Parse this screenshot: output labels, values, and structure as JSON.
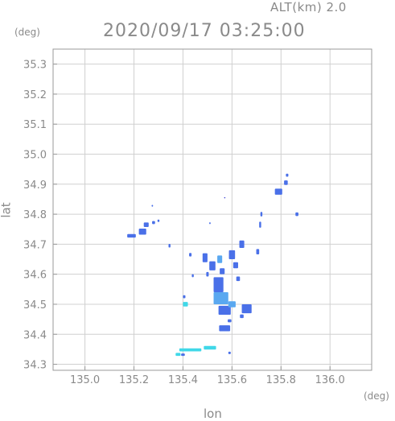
{
  "header": {
    "altitude": "ALT(km) 2.0",
    "datetime": "2020/09/17 03:25:00"
  },
  "chart_data": {
    "type": "heatmap",
    "title": "2020/09/17 03:25:00",
    "subtitle": "ALT(km) 2.0",
    "xlabel": "lon",
    "ylabel": "lat",
    "xunit": "(deg)",
    "yunit": "(deg)",
    "xlim": [
      134.87,
      136.17
    ],
    "ylim": [
      34.28,
      35.35
    ],
    "xticks": [
      "135.0",
      "135.2",
      "135.4",
      "135.6",
      "135.8",
      "136.0"
    ],
    "yticks": [
      "34.3",
      "34.4",
      "34.5",
      "34.6",
      "34.7",
      "34.8",
      "34.9",
      "35.0",
      "35.1",
      "35.2",
      "35.3"
    ],
    "grid": true,
    "colors": {
      "cyan": "#40d8e8",
      "lightblue": "#5aa8f0",
      "blue": "#4a70e8",
      "darkblue": "#3a40d0"
    },
    "cells": [
      {
        "lon": 135.19,
        "lat": 34.728,
        "w": 0.035,
        "h": 0.012,
        "c": "blue"
      },
      {
        "lon": 135.235,
        "lat": 34.742,
        "w": 0.03,
        "h": 0.02,
        "c": "blue"
      },
      {
        "lon": 135.25,
        "lat": 34.765,
        "w": 0.02,
        "h": 0.015,
        "c": "blue"
      },
      {
        "lon": 135.28,
        "lat": 34.772,
        "w": 0.012,
        "h": 0.01,
        "c": "blue"
      },
      {
        "lon": 135.3,
        "lat": 34.778,
        "w": 0.008,
        "h": 0.008,
        "c": "blue"
      },
      {
        "lon": 135.275,
        "lat": 34.828,
        "w": 0.006,
        "h": 0.006,
        "c": "blue"
      },
      {
        "lon": 135.345,
        "lat": 34.695,
        "w": 0.008,
        "h": 0.012,
        "c": "blue"
      },
      {
        "lon": 135.43,
        "lat": 34.665,
        "w": 0.01,
        "h": 0.012,
        "c": "blue"
      },
      {
        "lon": 135.49,
        "lat": 34.655,
        "w": 0.02,
        "h": 0.03,
        "c": "blue"
      },
      {
        "lon": 135.52,
        "lat": 34.628,
        "w": 0.025,
        "h": 0.03,
        "c": "blue"
      },
      {
        "lon": 135.55,
        "lat": 34.65,
        "w": 0.02,
        "h": 0.025,
        "c": "lightblue"
      },
      {
        "lon": 135.6,
        "lat": 34.665,
        "w": 0.025,
        "h": 0.03,
        "c": "blue"
      },
      {
        "lon": 135.64,
        "lat": 34.7,
        "w": 0.02,
        "h": 0.025,
        "c": "blue"
      },
      {
        "lon": 135.615,
        "lat": 34.63,
        "w": 0.02,
        "h": 0.02,
        "c": "blue"
      },
      {
        "lon": 135.44,
        "lat": 34.595,
        "w": 0.008,
        "h": 0.01,
        "c": "blue"
      },
      {
        "lon": 135.5,
        "lat": 34.6,
        "w": 0.01,
        "h": 0.015,
        "c": "blue"
      },
      {
        "lon": 135.56,
        "lat": 34.61,
        "w": 0.02,
        "h": 0.02,
        "c": "blue"
      },
      {
        "lon": 135.625,
        "lat": 34.585,
        "w": 0.015,
        "h": 0.015,
        "c": "blue"
      },
      {
        "lon": 135.545,
        "lat": 34.565,
        "w": 0.04,
        "h": 0.05,
        "c": "blue"
      },
      {
        "lon": 135.555,
        "lat": 34.52,
        "w": 0.06,
        "h": 0.04,
        "c": "lightblue"
      },
      {
        "lon": 135.57,
        "lat": 34.48,
        "w": 0.05,
        "h": 0.03,
        "c": "blue"
      },
      {
        "lon": 135.6,
        "lat": 34.5,
        "w": 0.03,
        "h": 0.02,
        "c": "lightblue"
      },
      {
        "lon": 135.66,
        "lat": 34.485,
        "w": 0.04,
        "h": 0.03,
        "c": "blue"
      },
      {
        "lon": 135.64,
        "lat": 34.46,
        "w": 0.015,
        "h": 0.012,
        "c": "blue"
      },
      {
        "lon": 135.405,
        "lat": 34.525,
        "w": 0.01,
        "h": 0.01,
        "c": "blue"
      },
      {
        "lon": 135.41,
        "lat": 34.5,
        "w": 0.02,
        "h": 0.015,
        "c": "cyan"
      },
      {
        "lon": 135.57,
        "lat": 34.42,
        "w": 0.045,
        "h": 0.02,
        "c": "blue"
      },
      {
        "lon": 135.59,
        "lat": 34.445,
        "w": 0.015,
        "h": 0.01,
        "c": "blue"
      },
      {
        "lon": 135.43,
        "lat": 34.348,
        "w": 0.09,
        "h": 0.01,
        "c": "cyan"
      },
      {
        "lon": 135.51,
        "lat": 34.355,
        "w": 0.05,
        "h": 0.012,
        "c": "cyan"
      },
      {
        "lon": 135.38,
        "lat": 34.333,
        "w": 0.02,
        "h": 0.01,
        "c": "cyan"
      },
      {
        "lon": 135.4,
        "lat": 34.332,
        "w": 0.015,
        "h": 0.008,
        "c": "blue"
      },
      {
        "lon": 135.59,
        "lat": 34.338,
        "w": 0.01,
        "h": 0.008,
        "c": "blue"
      },
      {
        "lon": 135.705,
        "lat": 34.675,
        "w": 0.012,
        "h": 0.018,
        "c": "blue"
      },
      {
        "lon": 135.715,
        "lat": 34.765,
        "w": 0.008,
        "h": 0.02,
        "c": "blue"
      },
      {
        "lon": 135.72,
        "lat": 34.8,
        "w": 0.008,
        "h": 0.015,
        "c": "blue"
      },
      {
        "lon": 135.79,
        "lat": 34.875,
        "w": 0.03,
        "h": 0.02,
        "c": "blue"
      },
      {
        "lon": 135.82,
        "lat": 34.905,
        "w": 0.015,
        "h": 0.015,
        "c": "blue"
      },
      {
        "lon": 135.825,
        "lat": 34.93,
        "w": 0.01,
        "h": 0.01,
        "c": "blue"
      },
      {
        "lon": 135.865,
        "lat": 34.8,
        "w": 0.012,
        "h": 0.012,
        "c": "blue"
      },
      {
        "lon": 135.57,
        "lat": 34.855,
        "w": 0.004,
        "h": 0.004,
        "c": "darkblue"
      },
      {
        "lon": 135.51,
        "lat": 34.77,
        "w": 0.006,
        "h": 0.006,
        "c": "blue"
      }
    ]
  }
}
